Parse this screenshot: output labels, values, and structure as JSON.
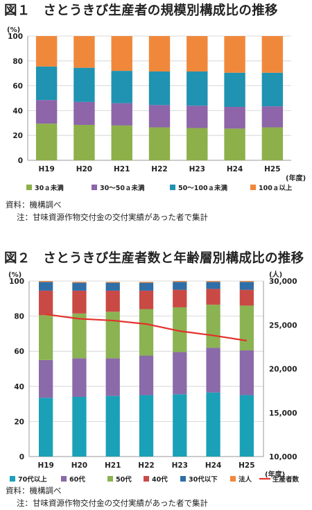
{
  "fig1": {
    "title": "図１　さとうきび生産者の規模別構成比の推移",
    "source": "資料：機構調べ",
    "note": "注：甘味資源作物交付金の交付実績があった者で集計"
  },
  "fig2": {
    "title": "図２　さとうきび生産者数と年齢層別構成比の推移",
    "source": "資料：機構調べ",
    "note": "注：甘味資源作物交付金の交付実績があった者で集計"
  },
  "chart_data": [
    {
      "type": "bar",
      "stacked": true,
      "categories": [
        "H19",
        "H20",
        "H21",
        "H22",
        "H23",
        "H24",
        "H25"
      ],
      "xlabel": "(年度)",
      "ylabel": "(%)",
      "ylim": [
        0,
        100
      ],
      "yticks": [
        0,
        20,
        40,
        60,
        80,
        100
      ],
      "legend_position": "bottom",
      "series": [
        {
          "name": "30ａ未満",
          "color": "#8db04a",
          "values": [
            29.5,
            28.5,
            28,
            26.5,
            26,
            25.5,
            26.5
          ]
        },
        {
          "name": "30～50ａ未満",
          "color": "#8d65a8",
          "values": [
            19,
            18.5,
            18,
            18,
            18,
            17.5,
            17
          ]
        },
        {
          "name": "50～100ａ未満",
          "color": "#1f93b1",
          "values": [
            27,
            27.5,
            26,
            27,
            27.5,
            27.5,
            27
          ]
        },
        {
          "name": "100ａ以上",
          "color": "#f0883c",
          "values": [
            24.5,
            25.5,
            28,
            28.5,
            28.5,
            29.5,
            29.5
          ]
        }
      ]
    },
    {
      "type": "bar",
      "stacked": true,
      "categories": [
        "H19",
        "H20",
        "H21",
        "H22",
        "H23",
        "H24",
        "H25"
      ],
      "xlabel": "(年度)",
      "ylabel": "(%)",
      "ylim": [
        0,
        100
      ],
      "yticks": [
        0,
        20,
        40,
        60,
        80,
        100
      ],
      "y2label": "(人)",
      "y2lim": [
        10000,
        30000
      ],
      "y2ticks": [
        10000,
        15000,
        20000,
        25000,
        30000
      ],
      "legend_position": "bottom",
      "series": [
        {
          "name": "70代以上",
          "color": "#1aa1b8",
          "values": [
            33.5,
            34,
            34.5,
            35,
            35.5,
            36.5,
            35
          ]
        },
        {
          "name": "60代",
          "color": "#8a6aa8",
          "values": [
            21.5,
            22,
            21.5,
            22.5,
            24,
            25.5,
            25.5
          ]
        },
        {
          "name": "50代",
          "color": "#8bb352",
          "values": [
            25.5,
            25.5,
            26.5,
            26.5,
            25.5,
            24.5,
            25.5
          ]
        },
        {
          "name": "40代",
          "color": "#c94a45",
          "values": [
            14,
            13,
            12,
            10.5,
            10,
            9,
            9
          ]
        },
        {
          "name": "30代以下",
          "color": "#2f6ea6",
          "values": [
            5,
            4.5,
            4.5,
            4.5,
            4.5,
            4,
            4.5
          ]
        },
        {
          "name": "法人",
          "color": "#f0883c",
          "values": [
            0.5,
            0.5,
            0.5,
            0.5,
            0.5,
            0.5,
            0.5
          ]
        }
      ],
      "line": {
        "name": "生産者数",
        "color": "#e4312a",
        "axis": "right",
        "values": [
          26200,
          25700,
          25500,
          25100,
          24300,
          23800,
          23200
        ]
      }
    }
  ]
}
